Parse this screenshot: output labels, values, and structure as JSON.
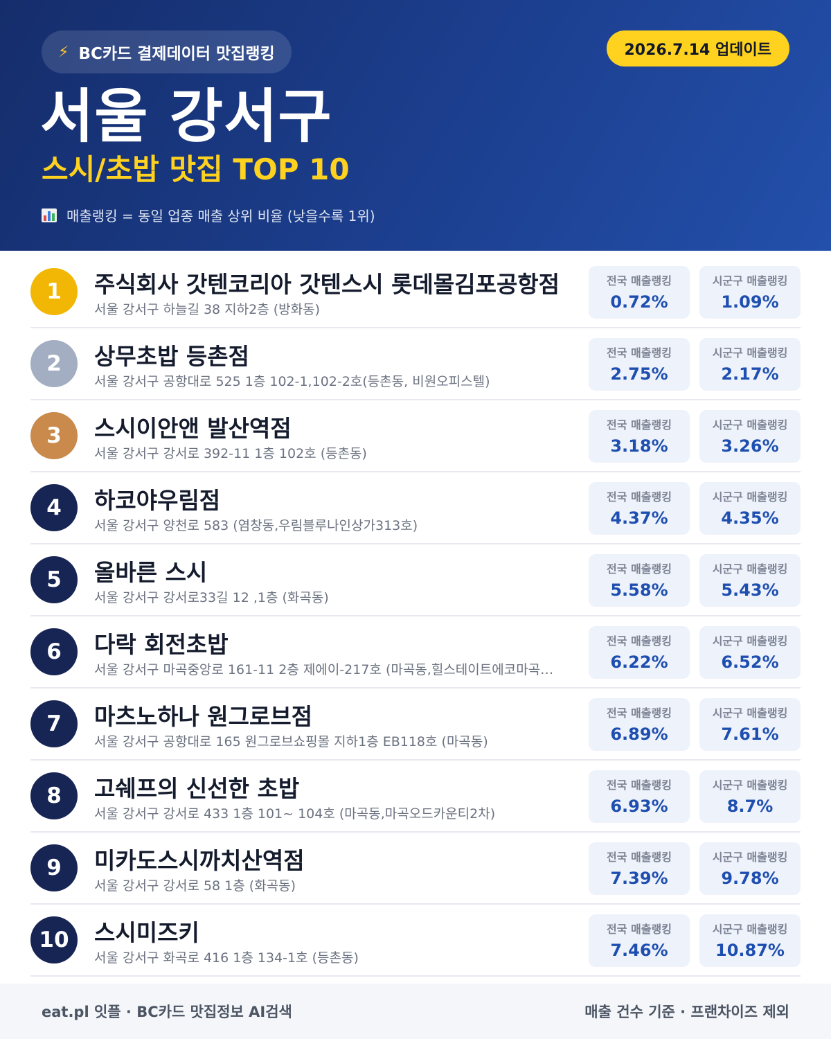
{
  "header": {
    "brand_icon": "lightning-icon",
    "brand": "BC카드 결제데이터 맛집랭킹",
    "update": "2026.7.14 업데이트",
    "title": "서울 강서구",
    "subtitle": "스시/초밥 맛집 TOP 10",
    "legend_icon": "bar-chart-icon",
    "legend": "매출랭킹 = 동일 업종 매출 상위 비율 (낮을수록 1위)"
  },
  "labels": {
    "national": "전국 매출랭킹",
    "local": "시군구 매출랭킹"
  },
  "items": [
    {
      "rank": "1",
      "name": "주식회사 갓텐코리아 갓텐스시 롯데몰김포공항점",
      "address": "서울 강서구 하늘길 38 지하2층 (방화동)",
      "national": "0.72%",
      "local": "1.09%"
    },
    {
      "rank": "2",
      "name": "상무초밥 등촌점",
      "address": "서울 강서구 공항대로 525 1층 102-1,102-2호(등촌동, 비원오피스텔)",
      "national": "2.75%",
      "local": "2.17%"
    },
    {
      "rank": "3",
      "name": "스시이안앤 발산역점",
      "address": "서울 강서구 강서로 392-11 1층 102호 (등촌동)",
      "national": "3.18%",
      "local": "3.26%"
    },
    {
      "rank": "4",
      "name": "하코야우림점",
      "address": "서울 강서구 양천로 583 (염창동,우림블루나인상가313호)",
      "national": "4.37%",
      "local": "4.35%"
    },
    {
      "rank": "5",
      "name": "올바른 스시",
      "address": "서울 강서구 강서로33길 12 ,1층 (화곡동)",
      "national": "5.58%",
      "local": "5.43%"
    },
    {
      "rank": "6",
      "name": "다락 회전초밥",
      "address": "서울 강서구 마곡중앙로 161-11 2층 제에이-217호 (마곡동,힐스테이트에코마곡…",
      "national": "6.22%",
      "local": "6.52%"
    },
    {
      "rank": "7",
      "name": "마츠노하나 원그로브점",
      "address": "서울 강서구 공항대로 165 원그로브쇼핑몰 지하1층 EB118호 (마곡동)",
      "national": "6.89%",
      "local": "7.61%"
    },
    {
      "rank": "8",
      "name": "고쉐프의 신선한 초밥",
      "address": "서울 강서구 강서로 433 1층 101~ 104호 (마곡동,마곡오드카운티2차)",
      "national": "6.93%",
      "local": "8.7%"
    },
    {
      "rank": "9",
      "name": "미카도스시까치산역점",
      "address": "서울 강서구 강서로 58 1층 (화곡동)",
      "national": "7.39%",
      "local": "9.78%"
    },
    {
      "rank": "10",
      "name": "스시미즈키",
      "address": "서울 강서구 화곡로 416 1층 134-1호 (등촌동)",
      "national": "7.46%",
      "local": "10.87%"
    }
  ],
  "footer": {
    "left": "eat.pl 잇플 · BC카드 맛집정보 AI검색",
    "right": "매출 건수 기준 · 프랜차이즈 제외"
  },
  "colors": {
    "header_bg": "#1c3f8f",
    "accent_yellow": "#ffd21f",
    "rank_gold": "#f2b705",
    "rank_silver": "#a3aec2",
    "rank_bronze": "#c98a4b",
    "rank_default": "#172554",
    "value_blue": "#1e4fb0"
  }
}
